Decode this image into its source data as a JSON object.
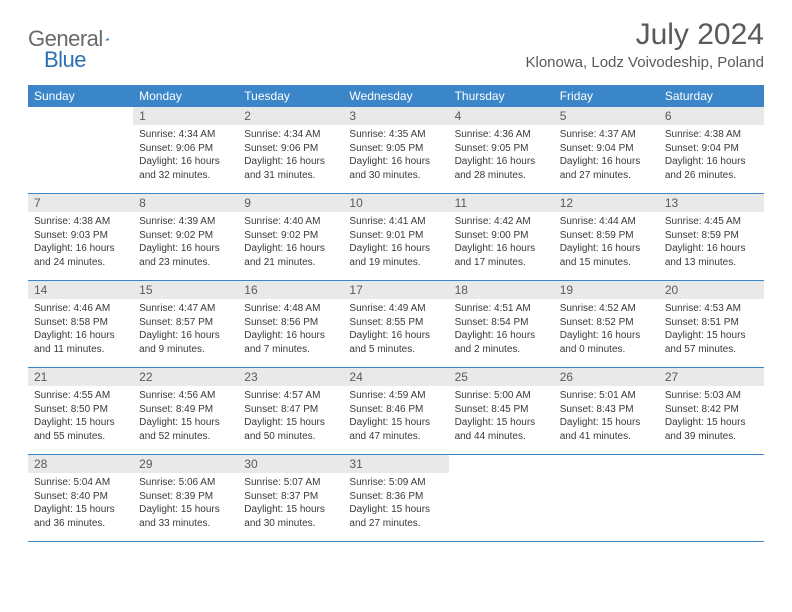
{
  "brand": {
    "name_part1": "General",
    "name_part2": "Blue",
    "triangle_color": "#2a72b5",
    "text_color": "#6a6a6a"
  },
  "title": "July 2024",
  "location": "Klonowa, Lodz Voivodeship, Poland",
  "colors": {
    "header_bg": "#3a86c8",
    "header_text": "#ffffff",
    "daynum_bg": "#e9e9e9",
    "daynum_text": "#5a5a5a",
    "body_text": "#3a3a3a",
    "border": "#3a86c8"
  },
  "weekdays": [
    "Sunday",
    "Monday",
    "Tuesday",
    "Wednesday",
    "Thursday",
    "Friday",
    "Saturday"
  ],
  "weeks": [
    [
      null,
      {
        "d": "1",
        "sunrise": "Sunrise: 4:34 AM",
        "sunset": "Sunset: 9:06 PM",
        "day1": "Daylight: 16 hours",
        "day2": "and 32 minutes."
      },
      {
        "d": "2",
        "sunrise": "Sunrise: 4:34 AM",
        "sunset": "Sunset: 9:06 PM",
        "day1": "Daylight: 16 hours",
        "day2": "and 31 minutes."
      },
      {
        "d": "3",
        "sunrise": "Sunrise: 4:35 AM",
        "sunset": "Sunset: 9:05 PM",
        "day1": "Daylight: 16 hours",
        "day2": "and 30 minutes."
      },
      {
        "d": "4",
        "sunrise": "Sunrise: 4:36 AM",
        "sunset": "Sunset: 9:05 PM",
        "day1": "Daylight: 16 hours",
        "day2": "and 28 minutes."
      },
      {
        "d": "5",
        "sunrise": "Sunrise: 4:37 AM",
        "sunset": "Sunset: 9:04 PM",
        "day1": "Daylight: 16 hours",
        "day2": "and 27 minutes."
      },
      {
        "d": "6",
        "sunrise": "Sunrise: 4:38 AM",
        "sunset": "Sunset: 9:04 PM",
        "day1": "Daylight: 16 hours",
        "day2": "and 26 minutes."
      }
    ],
    [
      {
        "d": "7",
        "sunrise": "Sunrise: 4:38 AM",
        "sunset": "Sunset: 9:03 PM",
        "day1": "Daylight: 16 hours",
        "day2": "and 24 minutes."
      },
      {
        "d": "8",
        "sunrise": "Sunrise: 4:39 AM",
        "sunset": "Sunset: 9:02 PM",
        "day1": "Daylight: 16 hours",
        "day2": "and 23 minutes."
      },
      {
        "d": "9",
        "sunrise": "Sunrise: 4:40 AM",
        "sunset": "Sunset: 9:02 PM",
        "day1": "Daylight: 16 hours",
        "day2": "and 21 minutes."
      },
      {
        "d": "10",
        "sunrise": "Sunrise: 4:41 AM",
        "sunset": "Sunset: 9:01 PM",
        "day1": "Daylight: 16 hours",
        "day2": "and 19 minutes."
      },
      {
        "d": "11",
        "sunrise": "Sunrise: 4:42 AM",
        "sunset": "Sunset: 9:00 PM",
        "day1": "Daylight: 16 hours",
        "day2": "and 17 minutes."
      },
      {
        "d": "12",
        "sunrise": "Sunrise: 4:44 AM",
        "sunset": "Sunset: 8:59 PM",
        "day1": "Daylight: 16 hours",
        "day2": "and 15 minutes."
      },
      {
        "d": "13",
        "sunrise": "Sunrise: 4:45 AM",
        "sunset": "Sunset: 8:59 PM",
        "day1": "Daylight: 16 hours",
        "day2": "and 13 minutes."
      }
    ],
    [
      {
        "d": "14",
        "sunrise": "Sunrise: 4:46 AM",
        "sunset": "Sunset: 8:58 PM",
        "day1": "Daylight: 16 hours",
        "day2": "and 11 minutes."
      },
      {
        "d": "15",
        "sunrise": "Sunrise: 4:47 AM",
        "sunset": "Sunset: 8:57 PM",
        "day1": "Daylight: 16 hours",
        "day2": "and 9 minutes."
      },
      {
        "d": "16",
        "sunrise": "Sunrise: 4:48 AM",
        "sunset": "Sunset: 8:56 PM",
        "day1": "Daylight: 16 hours",
        "day2": "and 7 minutes."
      },
      {
        "d": "17",
        "sunrise": "Sunrise: 4:49 AM",
        "sunset": "Sunset: 8:55 PM",
        "day1": "Daylight: 16 hours",
        "day2": "and 5 minutes."
      },
      {
        "d": "18",
        "sunrise": "Sunrise: 4:51 AM",
        "sunset": "Sunset: 8:54 PM",
        "day1": "Daylight: 16 hours",
        "day2": "and 2 minutes."
      },
      {
        "d": "19",
        "sunrise": "Sunrise: 4:52 AM",
        "sunset": "Sunset: 8:52 PM",
        "day1": "Daylight: 16 hours",
        "day2": "and 0 minutes."
      },
      {
        "d": "20",
        "sunrise": "Sunrise: 4:53 AM",
        "sunset": "Sunset: 8:51 PM",
        "day1": "Daylight: 15 hours",
        "day2": "and 57 minutes."
      }
    ],
    [
      {
        "d": "21",
        "sunrise": "Sunrise: 4:55 AM",
        "sunset": "Sunset: 8:50 PM",
        "day1": "Daylight: 15 hours",
        "day2": "and 55 minutes."
      },
      {
        "d": "22",
        "sunrise": "Sunrise: 4:56 AM",
        "sunset": "Sunset: 8:49 PM",
        "day1": "Daylight: 15 hours",
        "day2": "and 52 minutes."
      },
      {
        "d": "23",
        "sunrise": "Sunrise: 4:57 AM",
        "sunset": "Sunset: 8:47 PM",
        "day1": "Daylight: 15 hours",
        "day2": "and 50 minutes."
      },
      {
        "d": "24",
        "sunrise": "Sunrise: 4:59 AM",
        "sunset": "Sunset: 8:46 PM",
        "day1": "Daylight: 15 hours",
        "day2": "and 47 minutes."
      },
      {
        "d": "25",
        "sunrise": "Sunrise: 5:00 AM",
        "sunset": "Sunset: 8:45 PM",
        "day1": "Daylight: 15 hours",
        "day2": "and 44 minutes."
      },
      {
        "d": "26",
        "sunrise": "Sunrise: 5:01 AM",
        "sunset": "Sunset: 8:43 PM",
        "day1": "Daylight: 15 hours",
        "day2": "and 41 minutes."
      },
      {
        "d": "27",
        "sunrise": "Sunrise: 5:03 AM",
        "sunset": "Sunset: 8:42 PM",
        "day1": "Daylight: 15 hours",
        "day2": "and 39 minutes."
      }
    ],
    [
      {
        "d": "28",
        "sunrise": "Sunrise: 5:04 AM",
        "sunset": "Sunset: 8:40 PM",
        "day1": "Daylight: 15 hours",
        "day2": "and 36 minutes."
      },
      {
        "d": "29",
        "sunrise": "Sunrise: 5:06 AM",
        "sunset": "Sunset: 8:39 PM",
        "day1": "Daylight: 15 hours",
        "day2": "and 33 minutes."
      },
      {
        "d": "30",
        "sunrise": "Sunrise: 5:07 AM",
        "sunset": "Sunset: 8:37 PM",
        "day1": "Daylight: 15 hours",
        "day2": "and 30 minutes."
      },
      {
        "d": "31",
        "sunrise": "Sunrise: 5:09 AM",
        "sunset": "Sunset: 8:36 PM",
        "day1": "Daylight: 15 hours",
        "day2": "and 27 minutes."
      },
      null,
      null,
      null
    ]
  ]
}
